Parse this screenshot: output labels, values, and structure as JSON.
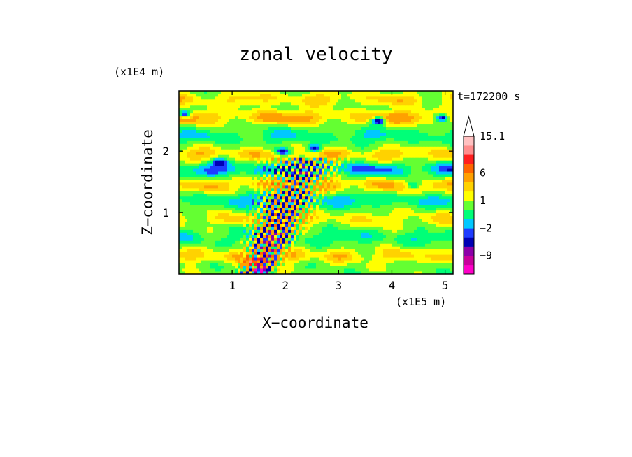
{
  "chart_data": {
    "type": "heatmap",
    "title": "zonal velocity",
    "xlabel": "X−coordinate",
    "ylabel": "Z−coordinate",
    "x_unit": "(x1E5 m)",
    "y_unit": "(x1E4 m)",
    "time_label": "t=172200 s",
    "xlim": [
      0,
      5.15
    ],
    "ylim": [
      0,
      2.98
    ],
    "x_ticks": [
      1,
      2,
      3,
      4,
      5
    ],
    "y_ticks": [
      1,
      2
    ],
    "x_tick_labels": [
      "1",
      "2",
      "3",
      "4",
      "5"
    ],
    "y_tick_labels": [
      "1",
      "2"
    ],
    "colorbar": {
      "levels": [
        -15,
        -12,
        -9,
        -6,
        -3,
        -2,
        -1,
        0,
        1,
        2,
        3,
        6,
        9,
        12,
        15.1
      ],
      "tick_labels": [
        {
          "value": 15.1,
          "label": "15.1"
        },
        {
          "value": 6,
          "label": "6"
        },
        {
          "value": 1,
          "label": "1"
        },
        {
          "value": -2,
          "label": "−2"
        },
        {
          "value": -9,
          "label": "−9"
        }
      ],
      "colors": [
        "#ff00c8",
        "#c8009b",
        "#8c00a8",
        "#0000b4",
        "#1e3cff",
        "#00c8ff",
        "#00ff78",
        "#64ff32",
        "#ffff00",
        "#ffd200",
        "#ffa000",
        "#ff6400",
        "#ff1e1e",
        "#ff8c8c",
        "#ffc0c0"
      ],
      "extend_max_color": "#ffffff"
    },
    "field": {
      "background_value": 0.5,
      "zonal_bands": [
        {
          "z": 2.85,
          "amp": 2.2,
          "wavelength": 1.4
        },
        {
          "z": 2.55,
          "amp": 3.5,
          "wavelength": 2.0
        },
        {
          "z": 2.25,
          "amp": -1.8,
          "wavelength": 1.7
        },
        {
          "z": 1.95,
          "amp": 2.6,
          "wavelength": 1.2
        },
        {
          "z": 1.7,
          "amp": -3.2,
          "wavelength": 1.5
        },
        {
          "z": 1.45,
          "amp": 3.0,
          "wavelength": 1.1
        },
        {
          "z": 1.2,
          "amp": -2.1,
          "wavelength": 1.9
        },
        {
          "z": 0.9,
          "amp": 1.8,
          "wavelength": 1.3
        },
        {
          "z": 0.6,
          "amp": -1.5,
          "wavelength": 1.6
        },
        {
          "z": 0.3,
          "amp": 2.4,
          "wavelength": 1.0
        }
      ],
      "plume": {
        "x_base": 1.45,
        "x_top": 2.4,
        "z_top": 1.9,
        "amp": 9.0,
        "wavelength": 0.12
      },
      "features": [
        {
          "x": 3.75,
          "z": 2.5,
          "value": -8
        },
        {
          "x": 0.1,
          "z": 2.6,
          "value": -6
        },
        {
          "x": 4.95,
          "z": 2.55,
          "value": -5
        },
        {
          "x": 2.55,
          "z": 2.05,
          "value": -5
        },
        {
          "x": 0.75,
          "z": 1.82,
          "value": -4
        },
        {
          "x": 1.55,
          "z": 0.05,
          "value": -12
        },
        {
          "x": 1.35,
          "z": 0.2,
          "value": 9
        },
        {
          "x": 4.4,
          "z": 1.45,
          "value": -3
        },
        {
          "x": 1.95,
          "z": 2.0,
          "value": -6
        }
      ]
    }
  }
}
